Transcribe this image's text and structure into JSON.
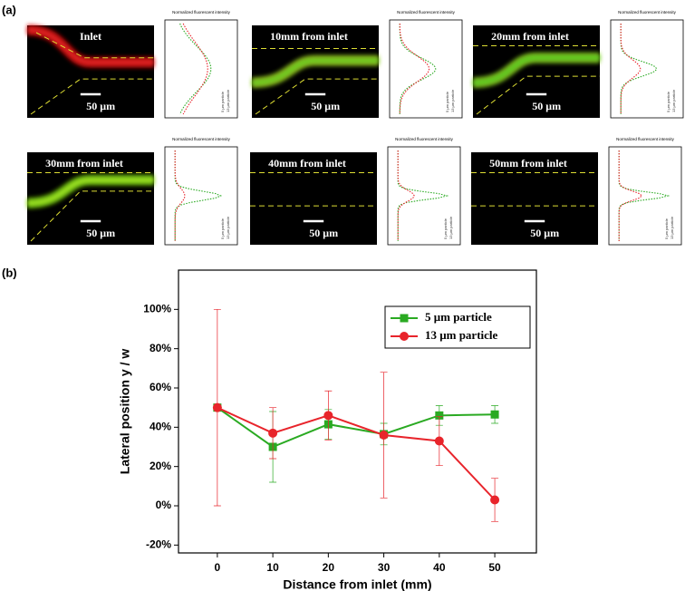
{
  "panel_labels": [
    "(a)",
    "(b)"
  ],
  "panel_a": {
    "profile_title": "Normalized fluorescent intensity",
    "images": [
      {
        "title": "Inlet",
        "scale_bar": "50 μm"
      },
      {
        "title": "10mm from inlet",
        "scale_bar": "50 μm"
      },
      {
        "title": "20mm from inlet",
        "scale_bar": "50 μm"
      },
      {
        "title": "30mm from inlet",
        "scale_bar": "50 μm"
      },
      {
        "title": "40mm from inlet",
        "scale_bar": "50 μm"
      },
      {
        "title": "50mm from inlet",
        "scale_bar": "50 μm"
      }
    ]
  },
  "chart_data": {
    "type": "line",
    "x_label": "Distance from inlet (mm)",
    "y_label": "Lateral position y / w",
    "x": [
      0,
      10,
      20,
      30,
      40,
      50
    ],
    "series": [
      {
        "name": "5 μm particle",
        "color": "#2aaa22",
        "marker": "square",
        "values": [
          50,
          30,
          41.5,
          36.5,
          46,
          46.5
        ],
        "errors": [
          0,
          18,
          7.5,
          5.5,
          5,
          4.5
        ]
      },
      {
        "name": "13 μm particle",
        "color": "#e8242b",
        "marker": "circle",
        "values": [
          50,
          37,
          46,
          36,
          33,
          3
        ],
        "errors": [
          50,
          13,
          12.5,
          32,
          12.5,
          11
        ]
      }
    ],
    "xlim": [
      -7,
      57.5
    ],
    "xticks": [
      0,
      10,
      20,
      30,
      40,
      50
    ],
    "ylim": [
      -24,
      120
    ],
    "yticks": [
      {
        "value": -20,
        "label": "-20%"
      },
      {
        "value": 0,
        "label": "0%"
      },
      {
        "value": 20,
        "label": "20%"
      },
      {
        "value": 40,
        "label": "40%"
      },
      {
        "value": 60,
        "label": "60%"
      },
      {
        "value": 80,
        "label": "80%"
      },
      {
        "value": 100,
        "label": "100%"
      }
    ],
    "legend": "upper right"
  }
}
